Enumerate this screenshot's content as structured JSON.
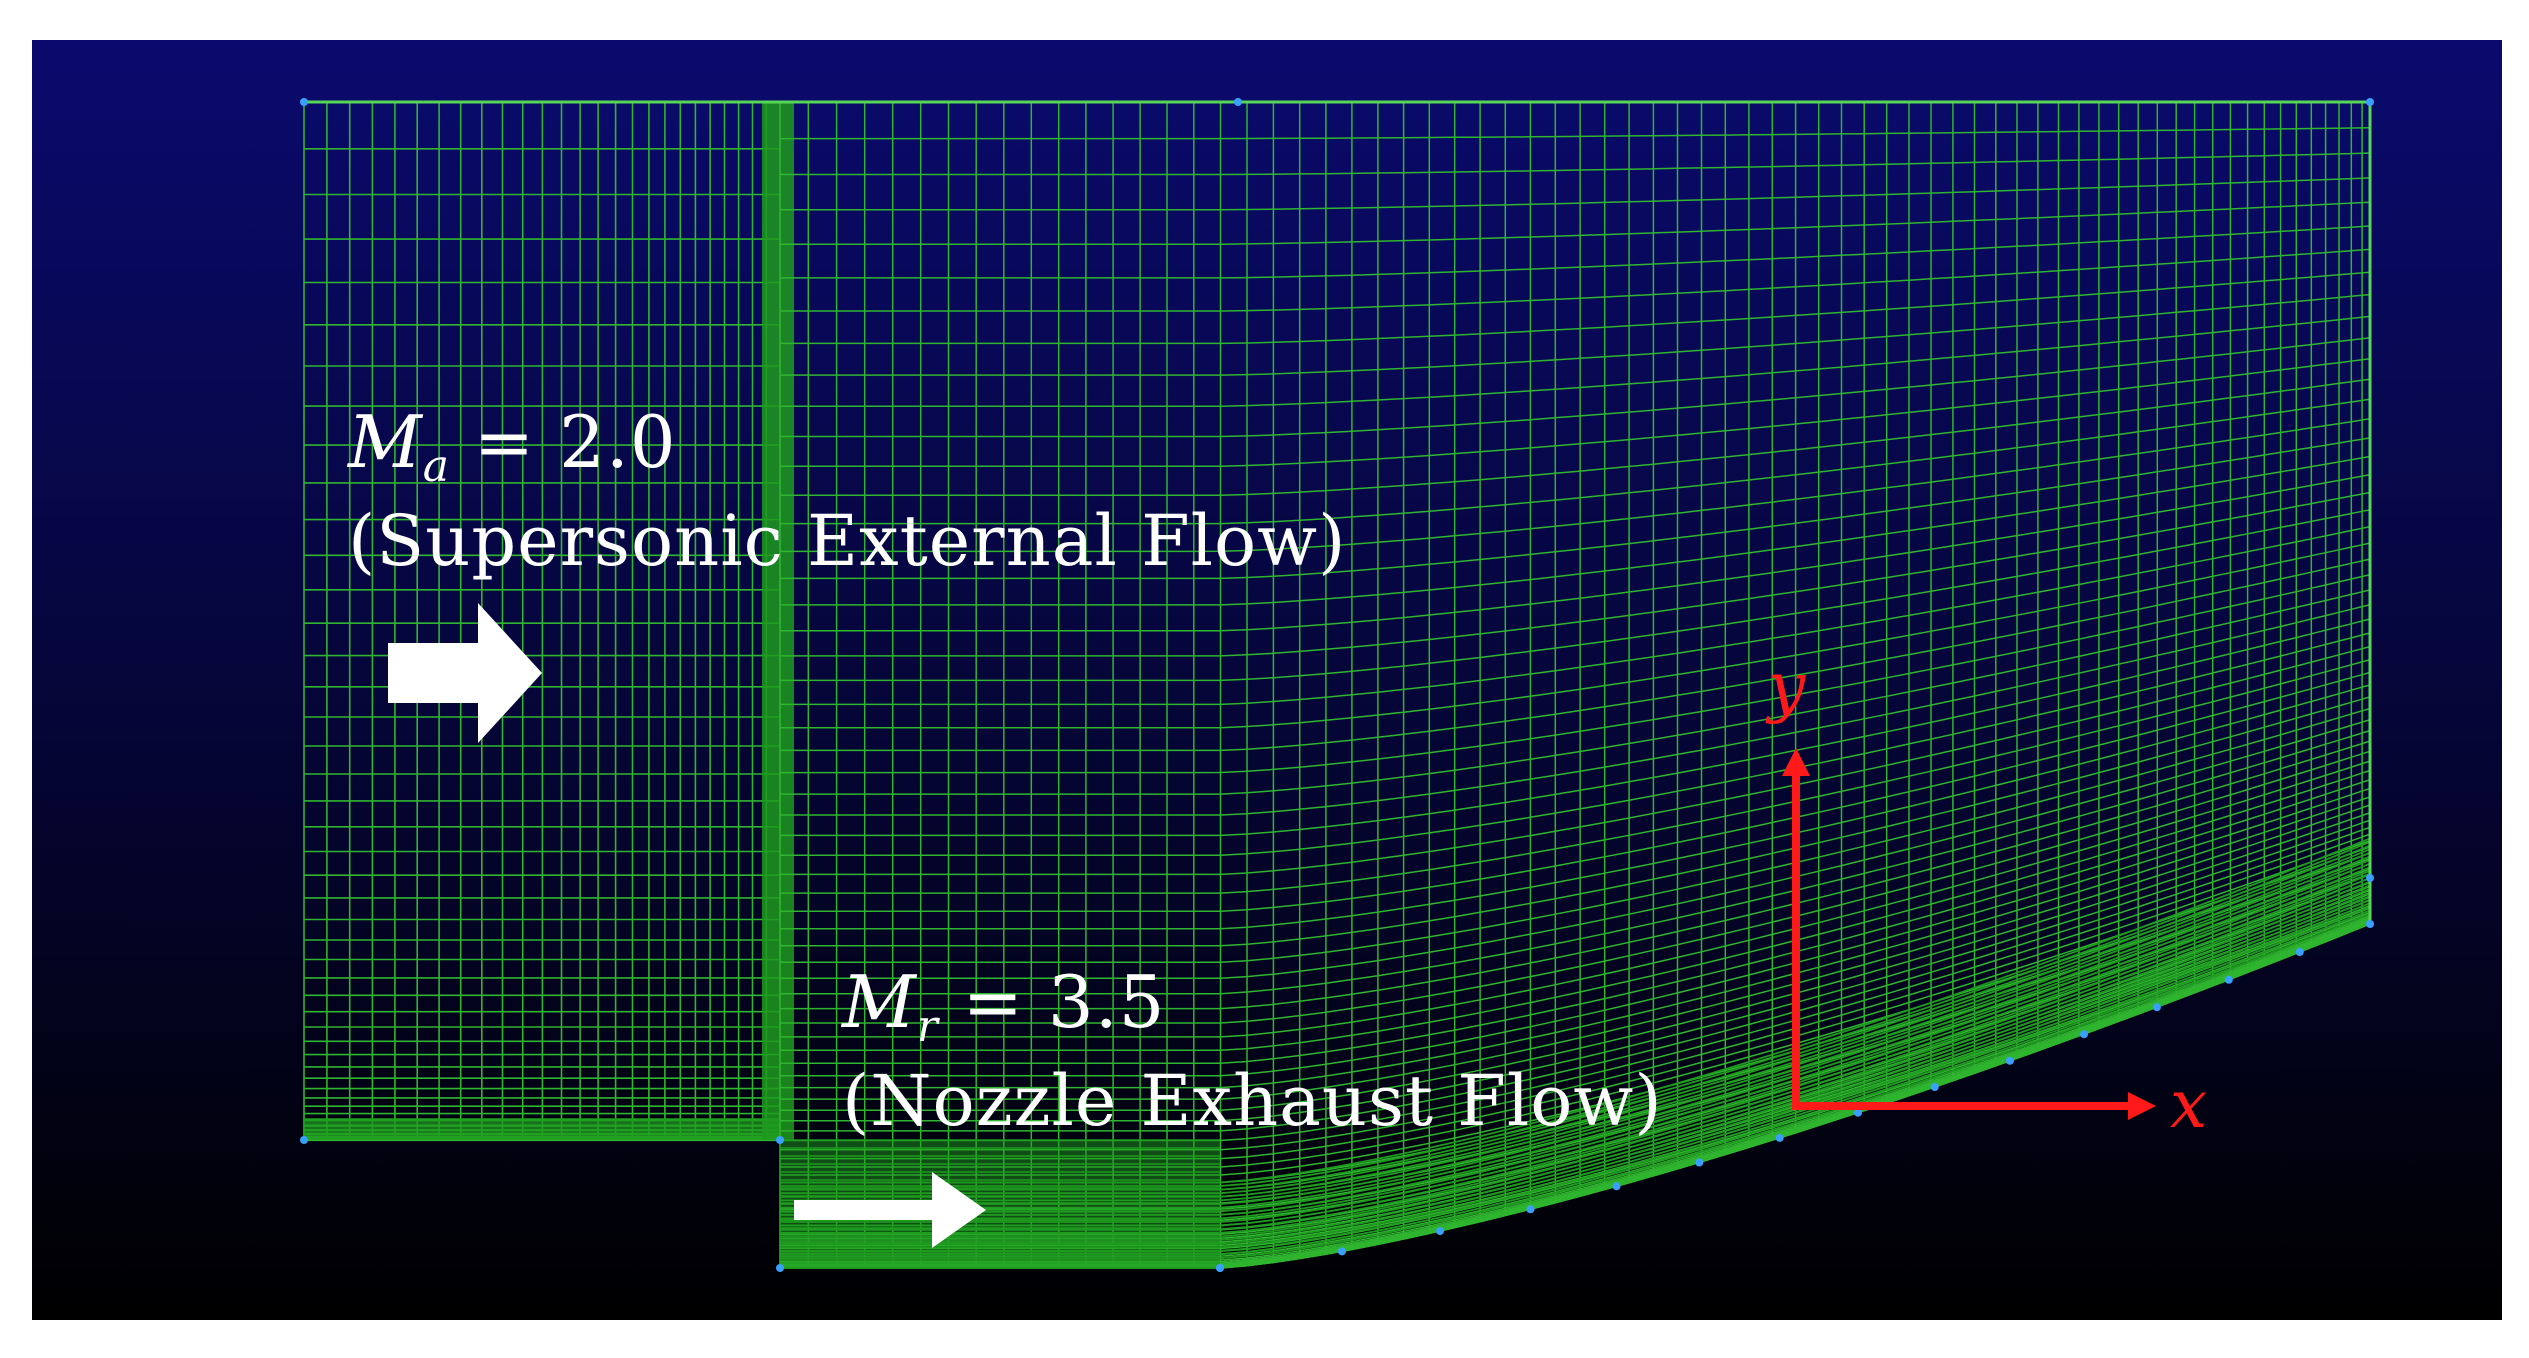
{
  "external_flow": {
    "mach_symbol": "M",
    "mach_subscript": "a",
    "mach_value": " = 2.0",
    "description": "(Supersonic External Flow)"
  },
  "exhaust_flow": {
    "mach_symbol": "M",
    "mach_subscript": "r",
    "mach_value": " = 3.5",
    "description": "(Nozzle Exhaust Flow)"
  },
  "axes": {
    "x_label": "x",
    "y_label": "y"
  },
  "colors": {
    "background_top": "#0a0a6e",
    "background_bottom": "#000000",
    "mesh": "#2fb52f",
    "mesh_dense": "#1e9a1e",
    "axis": "#ff1a1a",
    "arrow": "#ffffff",
    "node": "#3aa0ff"
  }
}
